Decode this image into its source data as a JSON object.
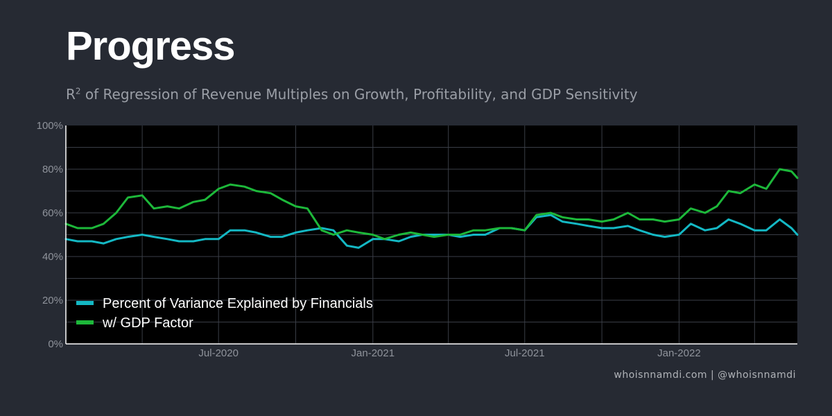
{
  "header": {
    "title": "Progress",
    "subtitle_r": "R",
    "subtitle_sup": "2",
    "subtitle_rest": " of Regression of Revenue Multiples on Growth, Profitability, and GDP Sensitivity"
  },
  "footer": {
    "credit": "whoisnnamdi.com | @whoisnnamdi"
  },
  "colors": {
    "background": "#262a33",
    "plot_background": "#000000",
    "series_1": "#14b8c4",
    "series_2": "#1db83a",
    "grid": "#3a3e47"
  },
  "chart_data": {
    "type": "line",
    "title": "Progress",
    "subtitle": "R2 of Regression of Revenue Multiples on Growth, Profitability, and GDP Sensitivity",
    "xlabel": "",
    "ylabel": "",
    "xlim": [
      "2020-01-01",
      "2022-05-22"
    ],
    "ylim": [
      0,
      100
    ],
    "x_ticks": [
      {
        "date": "2020-07-01",
        "label": "Jul-2020"
      },
      {
        "date": "2021-01-01",
        "label": "Jan-2021"
      },
      {
        "date": "2021-07-01",
        "label": "Jul-2021"
      },
      {
        "date": "2022-01-01",
        "label": "Jan-2022"
      }
    ],
    "y_ticks": [
      {
        "value": 0,
        "label": "0%"
      },
      {
        "value": 20,
        "label": "20%"
      },
      {
        "value": 40,
        "label": "40%"
      },
      {
        "value": 60,
        "label": "60%"
      },
      {
        "value": 80,
        "label": "80%"
      },
      {
        "value": 100,
        "label": "100%"
      }
    ],
    "grid": true,
    "legend_position": "bottom-left",
    "x": [
      "2020-01-01",
      "2020-01-15",
      "2020-02-01",
      "2020-02-15",
      "2020-03-01",
      "2020-03-15",
      "2020-04-01",
      "2020-04-15",
      "2020-05-01",
      "2020-05-15",
      "2020-06-01",
      "2020-06-15",
      "2020-07-01",
      "2020-07-15",
      "2020-08-01",
      "2020-08-15",
      "2020-09-01",
      "2020-09-15",
      "2020-10-01",
      "2020-10-15",
      "2020-11-01",
      "2020-11-15",
      "2020-12-01",
      "2020-12-15",
      "2021-01-01",
      "2021-01-15",
      "2021-02-01",
      "2021-02-15",
      "2021-03-01",
      "2021-03-15",
      "2021-04-01",
      "2021-04-15",
      "2021-05-01",
      "2021-05-15",
      "2021-06-01",
      "2021-06-15",
      "2021-07-01",
      "2021-07-15",
      "2021-08-01",
      "2021-08-15",
      "2021-09-01",
      "2021-09-15",
      "2021-10-01",
      "2021-10-15",
      "2021-11-01",
      "2021-11-15",
      "2021-12-01",
      "2021-12-15",
      "2022-01-01",
      "2022-01-15",
      "2022-02-01",
      "2022-02-15",
      "2022-03-01",
      "2022-03-15",
      "2022-04-01",
      "2022-04-15",
      "2022-05-01",
      "2022-05-15",
      "2022-05-22"
    ],
    "series": [
      {
        "name": "Percent of Variance Explained by Financials",
        "color": "#14b8c4",
        "values": [
          48,
          47,
          47,
          46,
          48,
          49,
          50,
          49,
          48,
          47,
          47,
          48,
          48,
          52,
          52,
          51,
          49,
          49,
          51,
          52,
          53,
          52,
          45,
          44,
          48,
          48,
          47,
          49,
          50,
          50,
          50,
          49,
          50,
          50,
          53,
          53,
          52,
          58,
          59,
          56,
          55,
          54,
          53,
          53,
          54,
          52,
          50,
          49,
          50,
          55,
          52,
          53,
          57,
          55,
          52,
          52,
          57,
          53,
          50
        ]
      },
      {
        "name": "w/ GDP Factor",
        "color": "#1db83a",
        "values": [
          55,
          53,
          53,
          55,
          60,
          67,
          68,
          62,
          63,
          62,
          65,
          66,
          71,
          73,
          72,
          70,
          69,
          66,
          63,
          62,
          52,
          50,
          52,
          51,
          50,
          48,
          50,
          51,
          50,
          49,
          50,
          50,
          52,
          52,
          53,
          53,
          52,
          59,
          60,
          58,
          57,
          57,
          56,
          57,
          60,
          57,
          57,
          56,
          57,
          62,
          60,
          63,
          70,
          69,
          73,
          71,
          80,
          79,
          76
        ]
      }
    ]
  }
}
